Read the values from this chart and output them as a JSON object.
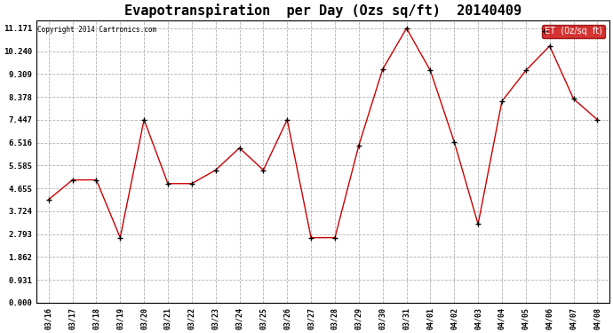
{
  "title": "Evapotranspiration  per Day (Ozs sq/ft)  20140409",
  "copyright": "Copyright 2014 Cartronics.com",
  "legend_label": "ET  (0z/sq  ft)",
  "x_labels": [
    "03/16",
    "03/17",
    "03/18",
    "03/19",
    "03/20",
    "03/21",
    "03/22",
    "03/23",
    "03/24",
    "03/25",
    "03/26",
    "03/27",
    "03/28",
    "03/29",
    "03/30",
    "03/31",
    "04/01",
    "04/02",
    "04/03",
    "04/04",
    "04/05",
    "04/06",
    "04/07",
    "04/08"
  ],
  "y_values": [
    4.2,
    5.0,
    5.0,
    2.65,
    7.45,
    4.85,
    4.85,
    5.4,
    6.3,
    5.4,
    7.45,
    2.65,
    2.65,
    6.4,
    9.5,
    11.17,
    9.45,
    6.55,
    3.2,
    8.2,
    9.45,
    10.45,
    8.3,
    7.45
  ],
  "line_color": "#cc0000",
  "marker_color": "#000000",
  "background_color": "#ffffff",
  "grid_color": "#aaaaaa",
  "yticks": [
    0.0,
    0.931,
    1.862,
    2.793,
    3.724,
    4.655,
    5.585,
    6.516,
    7.447,
    8.378,
    9.309,
    10.24,
    11.171
  ],
  "ylim": [
    0.0,
    11.5
  ],
  "title_fontsize": 11,
  "legend_bg": "#cc0000",
  "legend_text_color": "#ffffff"
}
